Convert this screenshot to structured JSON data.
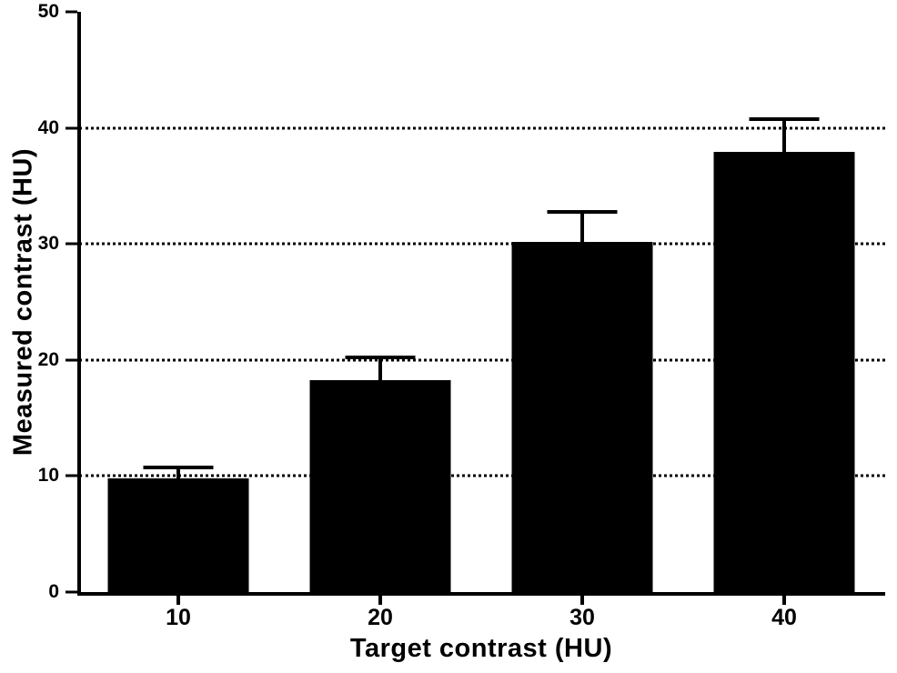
{
  "figure": {
    "background": "#ffffff",
    "bar_color": "#000000",
    "axis_color": "#000000",
    "gridline_color": "#000000"
  },
  "chart_data": {
    "type": "bar",
    "title": "",
    "xlabel": "Target contrast (HU)",
    "ylabel": "Measured contrast (HU)",
    "categories": [
      "10",
      "20",
      "30",
      "40"
    ],
    "values": [
      9.8,
      18.3,
      30.2,
      37.9
    ],
    "errors_upper": [
      1.1,
      2.1,
      2.7,
      3.0
    ],
    "ylim": [
      0,
      50
    ],
    "yticks": [
      0,
      10,
      20,
      30,
      40,
      50
    ],
    "ytick_labels": [
      "0",
      "10",
      "20",
      "30",
      "40",
      "50"
    ],
    "gridlines": [
      10,
      20,
      30,
      40
    ],
    "gridline_style": "dotted",
    "grid": "horizontal-only",
    "legend": "none",
    "error_bar_direction": "up"
  }
}
